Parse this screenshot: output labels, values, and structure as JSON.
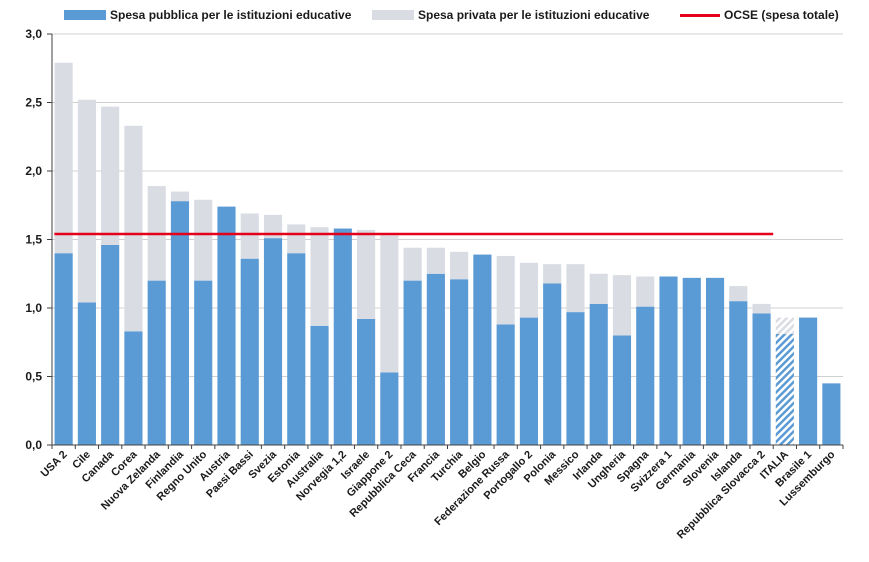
{
  "chart_data": {
    "type": "bar",
    "stacked": true,
    "title": "",
    "xlabel": "",
    "ylabel": "",
    "ylim": [
      0,
      3.0
    ],
    "yticks": [
      "0,0",
      "0,5",
      "1,0",
      "1,5",
      "2,0",
      "2,5",
      "3,0"
    ],
    "grid": true,
    "legend_position": "top",
    "categories": [
      "USA 2",
      "Cile",
      "Canada",
      "Corea",
      "Nuova Zelanda",
      "Finlandia",
      "Regno Unito",
      "Austria",
      "Paesi Bassi",
      "Svezia",
      "Estonia",
      "Australia",
      "Norvegia 1,2",
      "Israele",
      "Giappone 2",
      "Repubblica Ceca",
      "Francia",
      "Turchia",
      "Belgio",
      "Federazione Russa",
      "Portogallo 2",
      "Polonia",
      "Messico",
      "Irlanda",
      "Ungheria",
      "Spagna",
      "Svizzera 1",
      "Germania",
      "Slovenia",
      "Islanda",
      "Repubblica Slovacca 2",
      "ITALIA",
      "Brasile 1",
      "Lussemburgo"
    ],
    "series": [
      {
        "name": "Spesa pubblica per le istituzioni educative",
        "color": "#5b9bd5",
        "values": [
          1.4,
          1.04,
          1.46,
          0.83,
          1.2,
          1.78,
          1.2,
          1.74,
          1.36,
          1.51,
          1.4,
          0.87,
          1.58,
          0.92,
          0.53,
          1.2,
          1.25,
          1.21,
          1.39,
          0.88,
          0.93,
          1.18,
          0.97,
          1.03,
          0.8,
          1.01,
          1.23,
          1.22,
          1.22,
          1.05,
          0.96,
          0.81,
          0.93,
          0.45
        ]
      },
      {
        "name": "Spesa privata per le istituzioni educative",
        "color": "#d9dde3",
        "values": [
          1.39,
          1.48,
          1.01,
          1.5,
          0.69,
          0.07,
          0.59,
          0.0,
          0.33,
          0.17,
          0.21,
          0.72,
          0.0,
          0.65,
          1.0,
          0.24,
          0.19,
          0.2,
          0.0,
          0.5,
          0.4,
          0.14,
          0.35,
          0.22,
          0.44,
          0.22,
          0.0,
          0.0,
          0.0,
          0.11,
          0.07,
          0.12,
          0.0,
          0.0
        ]
      }
    ],
    "reference_line": {
      "name": "OCSE (spesa totale)",
      "value": 1.54,
      "color": "#e3001b"
    },
    "highlight_category": "ITALIA"
  },
  "legend": {
    "public": "Spesa pubblica per le istituzioni educative",
    "private": "Spesa privata per le istituzioni educative",
    "oecd": "OCSE (spesa totale)"
  },
  "colors": {
    "public": "#5b9bd5",
    "private": "#d9dde3",
    "oecd": "#e3001b",
    "highlight_public": "#6fa8dc",
    "highlight_private": "#d9dde3"
  }
}
